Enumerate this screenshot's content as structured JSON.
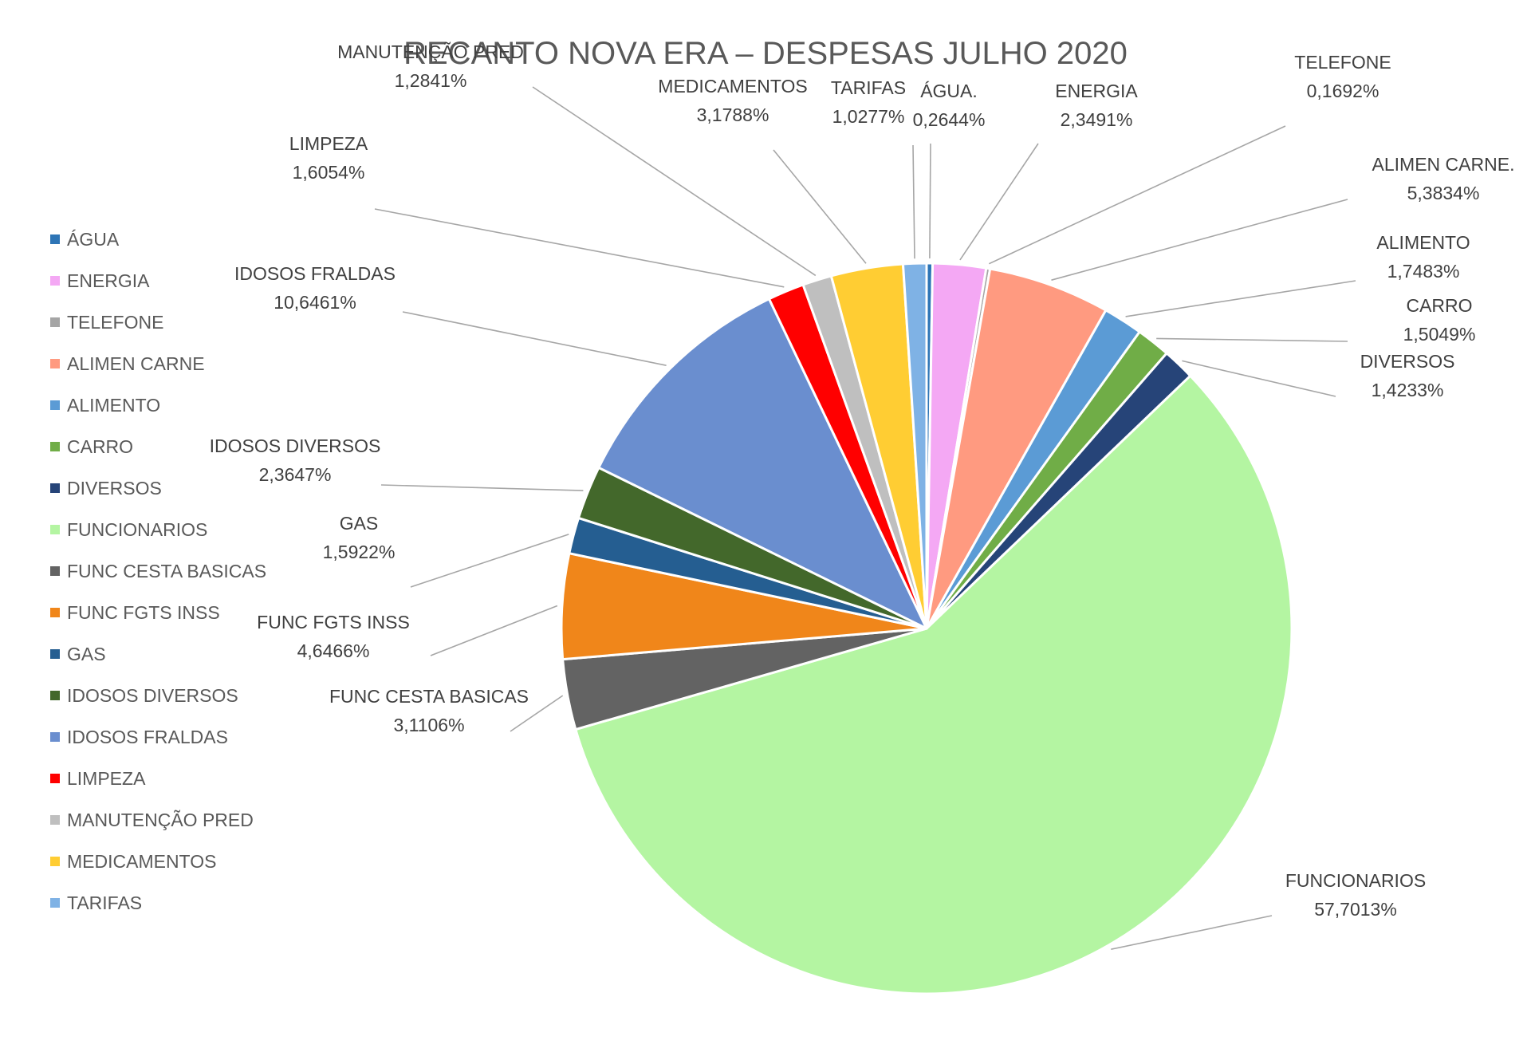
{
  "chart_data": {
    "type": "pie",
    "title": "RECANTO NOVA ERA – DESPESAS JULHO 2020",
    "legend_position": "left",
    "slices": [
      {
        "legend": "ÁGUA",
        "label": "ÁGUA.",
        "percent_label": "0,2644%",
        "value": 0.2644,
        "color": "#2e75b6"
      },
      {
        "legend": "ENERGIA",
        "label": "ENERGIA",
        "percent_label": "2,3491%",
        "value": 2.3491,
        "color": "#f4a8f4"
      },
      {
        "legend": "TELEFONE",
        "label": "TELEFONE",
        "percent_label": "0,1692%",
        "value": 0.1692,
        "color": "#a5a5a5"
      },
      {
        "legend": "ALIMEN CARNE",
        "label": "ALIMEN CARNE.",
        "percent_label": "5,3834%",
        "value": 5.3834,
        "color": "#ff9a80"
      },
      {
        "legend": "ALIMENTO",
        "label": "ALIMENTO",
        "percent_label": "1,7483%",
        "value": 1.7483,
        "color": "#5b9bd5"
      },
      {
        "legend": "CARRO",
        "label": "CARRO",
        "percent_label": "1,5049%",
        "value": 1.5049,
        "color": "#70ad47"
      },
      {
        "legend": "DIVERSOS",
        "label": "DIVERSOS",
        "percent_label": "1,4233%",
        "value": 1.4233,
        "color": "#264478"
      },
      {
        "legend": "FUNCIONARIOS",
        "label": "FUNCIONARIOS",
        "percent_label": "57,7013%",
        "value": 57.7013,
        "color": "#b4f5a2"
      },
      {
        "legend": "FUNC CESTA BASICAS",
        "label": "FUNC CESTA BASICAS",
        "percent_label": "3,1106%",
        "value": 3.1106,
        "color": "#636363"
      },
      {
        "legend": "FUNC FGTS INSS",
        "label": "FUNC FGTS INSS",
        "percent_label": "4,6466%",
        "value": 4.6466,
        "color": "#f0861a"
      },
      {
        "legend": "GAS",
        "label": "GAS",
        "percent_label": "1,5922%",
        "value": 1.5922,
        "color": "#255e91"
      },
      {
        "legend": "IDOSOS DIVERSOS",
        "label": "IDOSOS DIVERSOS",
        "percent_label": "2,3647%",
        "value": 2.3647,
        "color": "#43682b"
      },
      {
        "legend": "IDOSOS FRALDAS",
        "label": "IDOSOS FRALDAS",
        "percent_label": "10,6461%",
        "value": 10.6461,
        "color": "#6a8ecf"
      },
      {
        "legend": "LIMPEZA",
        "label": "LIMPEZA",
        "percent_label": "1,6054%",
        "value": 1.6054,
        "color": "#ff0000"
      },
      {
        "legend": "MANUTENÇÃO PRED",
        "label": "MANUTENÇÃO PRED",
        "percent_label": "1,2841%",
        "value": 1.2841,
        "color": "#bfbfbf"
      },
      {
        "legend": "MEDICAMENTOS",
        "label": "MEDICAMENTOS",
        "percent_label": "3,1788%",
        "value": 3.1788,
        "color": "#ffcd33"
      },
      {
        "legend": "TARIFAS",
        "label": "TARIFAS",
        "percent_label": "1,0277%",
        "value": 1.0277,
        "color": "#7fb2e5"
      }
    ]
  }
}
